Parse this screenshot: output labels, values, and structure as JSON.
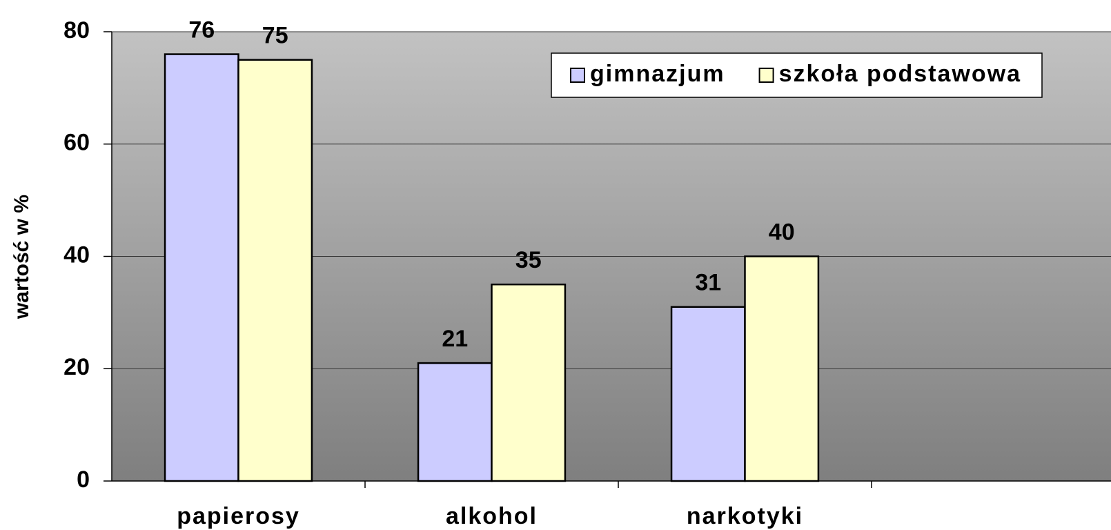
{
  "chart_data": {
    "type": "bar",
    "y_label": "wartość w %",
    "categories": [
      "papierosy",
      "alkohol",
      "narkotyki",
      null
    ],
    "series": [
      {
        "name": "gimnazjum",
        "color": "#ccccff",
        "values": [
          76,
          21,
          31,
          null
        ]
      },
      {
        "name": "szkoła podstawowa",
        "color": "#ffffcc",
        "values": [
          75,
          35,
          40,
          null
        ]
      }
    ],
    "ylim": [
      0,
      80
    ],
    "yticks": [
      0,
      20,
      40,
      60,
      80
    ],
    "grid": true,
    "legend": "top-right"
  }
}
